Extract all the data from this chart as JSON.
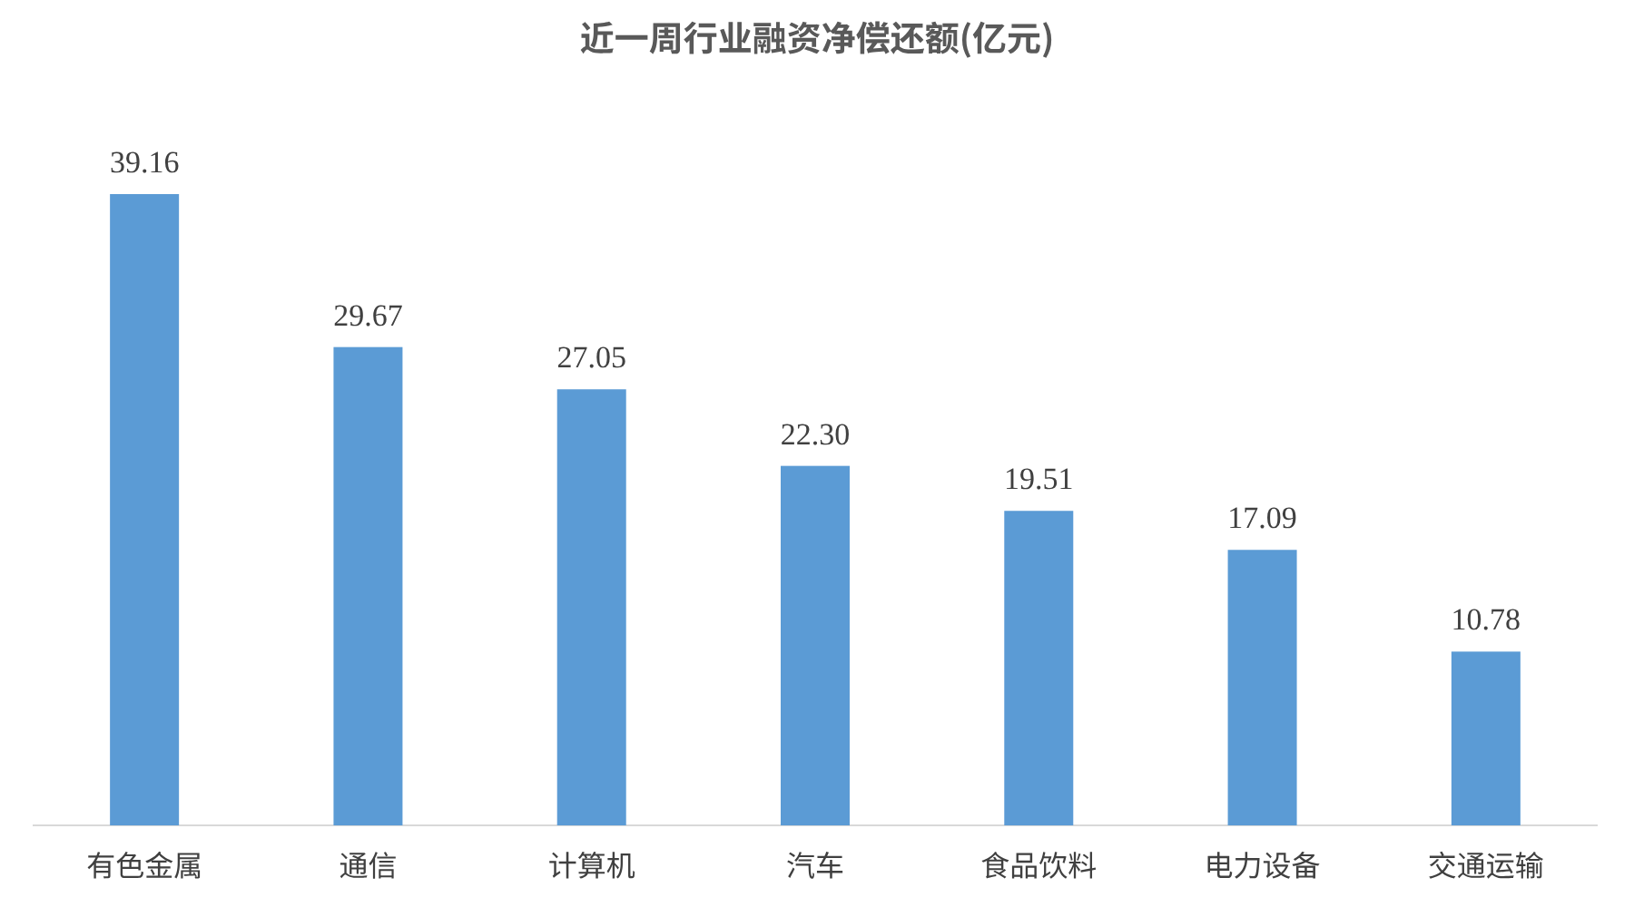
{
  "chart_data": {
    "type": "bar",
    "title": "近一周行业融资净偿还额(亿元)",
    "categories": [
      "有色金属",
      "通信",
      "计算机",
      "汽车",
      "食品饮料",
      "电力设备",
      "交通运输"
    ],
    "values": [
      39.16,
      29.67,
      27.05,
      22.3,
      19.51,
      17.09,
      10.78
    ],
    "value_labels": [
      "39.16",
      "29.67",
      "27.05",
      "22.30",
      "19.51",
      "17.09",
      "10.78"
    ],
    "color": "#5b9bd5"
  }
}
